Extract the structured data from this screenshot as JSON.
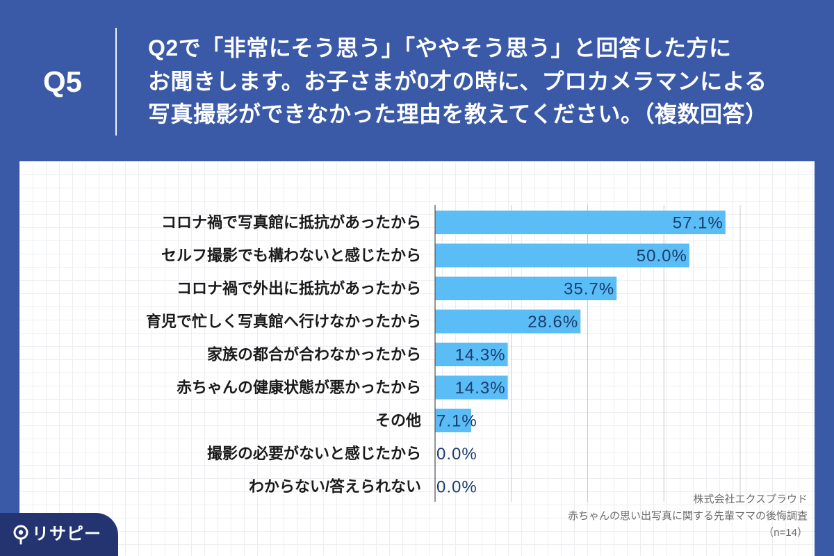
{
  "colors": {
    "background_blue": "#3a59a7",
    "panel": "#ffffff",
    "bar": "#5abdf6",
    "value_label": "#1d3c6e",
    "logo_bg": "#243470"
  },
  "header": {
    "question_number": "Q5",
    "question_lines": [
      "Q2で「非常にそう思う」「ややそう思う」と回答した方に",
      "お聞きします。お子さまが0才の時に、プロカメラマンによる",
      "写真撮影ができなかった理由を教えてください。（複数回答）"
    ]
  },
  "chart_data": {
    "type": "bar",
    "orientation": "horizontal",
    "categories": [
      "コロナ禍で写真館に抵抗があったから",
      "セルフ撮影でも構わないと感じたから",
      "コロナ禍で外出に抵抗があったから",
      "育児で忙しく写真館へ行けなかったから",
      "家族の都合が合わなかったから",
      "赤ちゃんの健康状態が悪かったから",
      "その他",
      "撮影の必要がないと感じたから",
      "わからない/答えられない"
    ],
    "values": [
      57.1,
      50.0,
      35.7,
      28.6,
      14.3,
      14.3,
      7.1,
      0.0,
      0.0
    ],
    "value_labels": [
      "57.1%",
      "50.0%",
      "35.7%",
      "28.6%",
      "14.3%",
      "14.3%",
      "7.1%",
      "0.0%",
      "0.0%"
    ],
    "xlim": [
      0,
      60
    ],
    "x_gridlines": [
      15,
      30,
      45,
      60
    ],
    "grid": true
  },
  "footer": {
    "company": "株式会社エクスプラウド",
    "survey_title": "赤ちゃんの思い出写真に関する先輩ママの後悔調査",
    "sample_size": "（n=14）"
  },
  "logo": {
    "text": "リサピー",
    "icon": "map-pin-icon"
  }
}
